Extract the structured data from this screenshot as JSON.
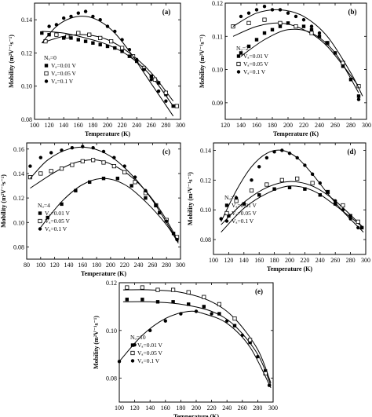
{
  "panels": [
    {
      "label": "(a)",
      "xlabel": "Temperature (K)",
      "ylabel": "Mobility (m²V⁻¹s⁻¹)",
      "xlim": [
        100,
        300
      ],
      "ylim": [
        0.08,
        0.15
      ],
      "xticks": [
        100,
        120,
        140,
        160,
        180,
        200,
        220,
        240,
        260,
        280,
        300
      ],
      "yticks": [
        0.08,
        0.1,
        0.12,
        0.14
      ],
      "legend": {
        "title": "Nᵤ=0",
        "position": "left-middle"
      },
      "series": [
        {
          "name": "Vₐ=0.01 V",
          "marker": "square-filled",
          "x": [
            110,
            120,
            130,
            140,
            150,
            160,
            170,
            180,
            190,
            200,
            210,
            220,
            230,
            240,
            250,
            260,
            270,
            280,
            290
          ],
          "y": [
            0.132,
            0.131,
            0.131,
            0.129,
            0.129,
            0.128,
            0.127,
            0.126,
            0.125,
            0.124,
            0.123,
            0.121,
            0.118,
            0.115,
            0.111,
            0.106,
            0.102,
            0.095,
            0.088
          ],
          "fit": {
            "x": [
              110,
              140,
              170,
              200,
              230,
              260,
              290
            ],
            "y": [
              0.133,
              0.132,
              0.129,
              0.125,
              0.118,
              0.106,
              0.088
            ]
          }
        },
        {
          "name": "Vₐ=0.05 V",
          "marker": "square-open",
          "x": [
            115,
            130,
            145,
            160,
            175,
            190,
            205,
            220,
            235,
            250,
            265,
            280,
            295
          ],
          "y": [
            0.127,
            0.131,
            0.13,
            0.132,
            0.131,
            0.129,
            0.127,
            0.123,
            0.118,
            0.111,
            0.104,
            0.096,
            0.088
          ],
          "fit": {
            "x": [
              110,
              140,
              170,
              200,
              230,
              260,
              290
            ],
            "y": [
              0.126,
              0.13,
              0.131,
              0.128,
              0.12,
              0.108,
              0.091
            ]
          }
        },
        {
          "name": "Vₐ=0.1 V",
          "marker": "circle-filled",
          "x": [
            120,
            130,
            140,
            150,
            160,
            170,
            180,
            190,
            200,
            210,
            220,
            230,
            240,
            250,
            260,
            270,
            280
          ],
          "y": [
            0.136,
            0.137,
            0.141,
            0.142,
            0.144,
            0.145,
            0.142,
            0.14,
            0.136,
            0.133,
            0.128,
            0.122,
            0.116,
            0.11,
            0.104,
            0.097,
            0.091
          ],
          "fit": {
            "x": [
              110,
              130,
              150,
              170,
              190,
              210,
              230,
              250,
              270,
              290
            ],
            "y": [
              0.126,
              0.136,
              0.141,
              0.142,
              0.139,
              0.132,
              0.121,
              0.108,
              0.095,
              0.082
            ]
          }
        }
      ]
    },
    {
      "label": "(b)",
      "xlabel": "Temperature (K)",
      "ylabel": "Mobility (m²V⁻¹s⁻¹)",
      "xlim": [
        120,
        300
      ],
      "ylim": [
        0.085,
        0.12
      ],
      "xticks": [
        120,
        140,
        160,
        180,
        200,
        220,
        240,
        260,
        280,
        300
      ],
      "yticks": [
        0.09,
        0.1,
        0.11,
        0.12
      ],
      "legend": {
        "title": "Nᵤ=2",
        "position": "left-middle"
      },
      "series": [
        {
          "name": "Vₐ=0.01 V",
          "marker": "square-filled",
          "x": [
            140,
            150,
            160,
            170,
            180,
            190,
            200,
            210,
            220,
            230,
            240,
            250,
            260,
            270,
            280,
            290
          ],
          "y": [
            0.105,
            0.107,
            0.109,
            0.111,
            0.112,
            0.113,
            0.114,
            0.113,
            0.113,
            0.112,
            0.11,
            0.108,
            0.105,
            0.101,
            0.097,
            0.092
          ],
          "fit": {
            "x": [
              140,
              170,
              200,
              230,
              260,
              290
            ],
            "y": [
              0.104,
              0.109,
              0.112,
              0.111,
              0.105,
              0.093
            ]
          }
        },
        {
          "name": "Vₐ=0.05 V",
          "marker": "square-open",
          "x": [
            130,
            150,
            170,
            190,
            210,
            230,
            250,
            270,
            290
          ],
          "y": [
            0.113,
            0.114,
            0.115,
            0.114,
            0.113,
            0.111,
            0.108,
            0.102,
            0.095
          ],
          "fit": {
            "x": [
              130,
              160,
              190,
              220,
              250,
              290
            ],
            "y": [
              0.11,
              0.113,
              0.114,
              0.112,
              0.107,
              0.095
            ]
          }
        },
        {
          "name": "Vₐ=0.1 V",
          "marker": "circle-filled",
          "x": [
            140,
            150,
            160,
            170,
            180,
            190,
            200,
            210,
            220,
            230,
            240,
            250,
            260,
            270,
            280,
            290
          ],
          "y": [
            0.116,
            0.117,
            0.118,
            0.119,
            0.118,
            0.118,
            0.117,
            0.116,
            0.115,
            0.113,
            0.111,
            0.108,
            0.105,
            0.101,
            0.097,
            0.091
          ],
          "fit": {
            "x": [
              130,
              160,
              190,
              220,
              250,
              280,
              295
            ],
            "y": [
              0.113,
              0.117,
              0.118,
              0.116,
              0.11,
              0.099,
              0.092
            ]
          }
        }
      ]
    },
    {
      "label": "(c)",
      "xlabel": "Temperature (K)",
      "ylabel": "Mobility (m²V⁻¹s⁻¹)",
      "xlim": [
        80,
        300
      ],
      "ylim": [
        0.07,
        0.165
      ],
      "xticks": [
        80,
        100,
        120,
        140,
        160,
        180,
        200,
        220,
        240,
        260,
        280,
        300
      ],
      "yticks": [
        0.08,
        0.1,
        0.12,
        0.14,
        0.16
      ],
      "legend": {
        "title": "Nᵤ=4",
        "position": "left-bottom"
      },
      "series": [
        {
          "name": "Vₐ=0.01 V",
          "marker": "square-filled",
          "x": [
            110,
            130,
            150,
            170,
            190,
            210,
            230,
            250,
            270,
            290
          ],
          "y": [
            0.104,
            0.115,
            0.126,
            0.133,
            0.136,
            0.136,
            0.13,
            0.12,
            0.108,
            0.091
          ],
          "fit": {
            "x": [
              100,
              130,
              160,
              190,
              220,
              250,
              280,
              297
            ],
            "y": [
              0.096,
              0.117,
              0.131,
              0.136,
              0.131,
              0.117,
              0.098,
              0.083
            ]
          }
        },
        {
          "name": "Vₐ=0.05 V",
          "marker": "square-open",
          "x": [
            85,
            100,
            115,
            130,
            145,
            160,
            175,
            190,
            205,
            220,
            235,
            250,
            265,
            280,
            295
          ],
          "y": [
            0.137,
            0.14,
            0.142,
            0.144,
            0.147,
            0.15,
            0.151,
            0.149,
            0.146,
            0.141,
            0.133,
            0.124,
            0.114,
            0.102,
            0.088
          ],
          "fit": {
            "x": [
              85,
              120,
              150,
              180,
              210,
              240,
              270,
              297
            ],
            "y": [
              0.128,
              0.141,
              0.149,
              0.151,
              0.145,
              0.132,
              0.111,
              0.085
            ]
          }
        },
        {
          "name": "Vₐ=0.1 V",
          "marker": "circle-filled",
          "x": [
            85,
            100,
            115,
            130,
            145,
            160,
            175,
            190,
            205,
            220,
            235,
            250,
            265,
            280,
            295
          ],
          "y": [
            0.146,
            0.153,
            0.157,
            0.159,
            0.161,
            0.162,
            0.161,
            0.158,
            0.153,
            0.146,
            0.137,
            0.126,
            0.114,
            0.101,
            0.086
          ],
          "fit": {
            "x": [
              85,
              110,
              140,
              170,
              200,
              230,
              260,
              297
            ],
            "y": [
              0.136,
              0.151,
              0.16,
              0.161,
              0.154,
              0.139,
              0.118,
              0.084
            ]
          }
        }
      ]
    },
    {
      "label": "(d)",
      "xlabel": "Temperature (K)",
      "ylabel": "Mobility (m²V⁻¹s⁻¹)",
      "xlim": [
        100,
        300
      ],
      "ylim": [
        0.07,
        0.145
      ],
      "xticks": [
        100,
        120,
        140,
        160,
        180,
        200,
        220,
        240,
        260,
        280,
        300
      ],
      "yticks": [
        0.08,
        0.1,
        0.12,
        0.14
      ],
      "legend": {
        "title": "Nᵤ=7",
        "position": "left-middle"
      },
      "series": [
        {
          "name": "Vₐ=0.01 V",
          "marker": "square-filled",
          "x": [
            120,
            140,
            160,
            180,
            200,
            220,
            240,
            260,
            280,
            295
          ],
          "y": [
            0.096,
            0.104,
            0.11,
            0.114,
            0.115,
            0.114,
            0.11,
            0.104,
            0.096,
            0.088
          ],
          "fit": {
            "x": [
              110,
              140,
              170,
              200,
              230,
              260,
              297
            ],
            "y": [
              0.085,
              0.101,
              0.111,
              0.116,
              0.113,
              0.103,
              0.088
            ]
          }
        },
        {
          "name": "Vₐ=0.05 V",
          "marker": "square-open",
          "x": [
            130,
            150,
            170,
            190,
            210,
            230,
            250,
            270,
            290
          ],
          "y": [
            0.106,
            0.113,
            0.117,
            0.12,
            0.121,
            0.118,
            0.112,
            0.103,
            0.092
          ],
          "fit": {
            "x": [
              110,
              140,
              170,
              200,
              230,
              260,
              297
            ],
            "y": [
              0.09,
              0.105,
              0.115,
              0.119,
              0.116,
              0.106,
              0.088
            ]
          }
        },
        {
          "name": "Vₐ=0.1 V",
          "marker": "circle-filled",
          "x": [
            110,
            130,
            150,
            160,
            170,
            180,
            190,
            200,
            210,
            220,
            230,
            240,
            250,
            260,
            270,
            280,
            290
          ],
          "y": [
            0.094,
            0.108,
            0.12,
            0.129,
            0.135,
            0.139,
            0.14,
            0.138,
            0.135,
            0.13,
            0.124,
            0.118,
            0.112,
            0.106,
            0.1,
            0.094,
            0.088
          ],
          "fit": {
            "x": [
              110,
              130,
              150,
              170,
              190,
              210,
              230,
              250,
              270,
              297
            ],
            "y": [
              0.092,
              0.113,
              0.129,
              0.138,
              0.14,
              0.135,
              0.124,
              0.111,
              0.099,
              0.085
            ]
          }
        }
      ]
    },
    {
      "label": "(e)",
      "xlabel": "Temperature (K)",
      "ylabel": "Mobility (m²V⁻¹s⁻¹)",
      "xlim": [
        100,
        300
      ],
      "ylim": [
        0.07,
        0.12
      ],
      "xticks": [
        100,
        120,
        140,
        160,
        180,
        200,
        220,
        240,
        260,
        280,
        300
      ],
      "yticks": [
        0.08,
        0.1,
        0.12
      ],
      "legend": {
        "title": "Nᵤ=10",
        "position": "left-middle"
      },
      "series": [
        {
          "name": "Vₐ=0.01 V",
          "marker": "square-filled",
          "x": [
            110,
            130,
            150,
            170,
            190,
            210,
            230,
            250,
            270,
            290
          ],
          "y": [
            0.113,
            0.113,
            0.112,
            0.112,
            0.111,
            0.11,
            0.107,
            0.102,
            0.095,
            0.083
          ],
          "fit": {
            "x": [
              105,
              140,
              180,
              220,
              250,
              280,
              297
            ],
            "y": [
              0.112,
              0.112,
              0.111,
              0.108,
              0.102,
              0.09,
              0.077
            ]
          }
        },
        {
          "name": "Vₐ=0.05 V",
          "marker": "square-open",
          "x": [
            110,
            130,
            150,
            170,
            190,
            210,
            230,
            250,
            270,
            290
          ],
          "y": [
            0.118,
            0.118,
            0.117,
            0.117,
            0.116,
            0.114,
            0.111,
            0.105,
            0.096,
            0.082
          ],
          "fit": {
            "x": [
              105,
              140,
              180,
              220,
              250,
              280,
              297
            ],
            "y": [
              0.117,
              0.117,
              0.116,
              0.112,
              0.105,
              0.092,
              0.078
            ]
          }
        },
        {
          "name": "Vₐ=0.1 V",
          "marker": "circle-filled",
          "x": [
            100,
            120,
            140,
            160,
            180,
            200,
            220,
            240,
            260,
            280,
            295
          ],
          "y": [
            0.087,
            0.094,
            0.1,
            0.104,
            0.107,
            0.108,
            0.107,
            0.104,
            0.098,
            0.089,
            0.077
          ],
          "fit": {
            "x": [
              100,
              130,
              160,
              190,
              210,
              240,
              270,
              297
            ],
            "y": [
              0.087,
              0.098,
              0.105,
              0.108,
              0.107,
              0.103,
              0.093,
              0.076
            ]
          }
        }
      ]
    }
  ]
}
